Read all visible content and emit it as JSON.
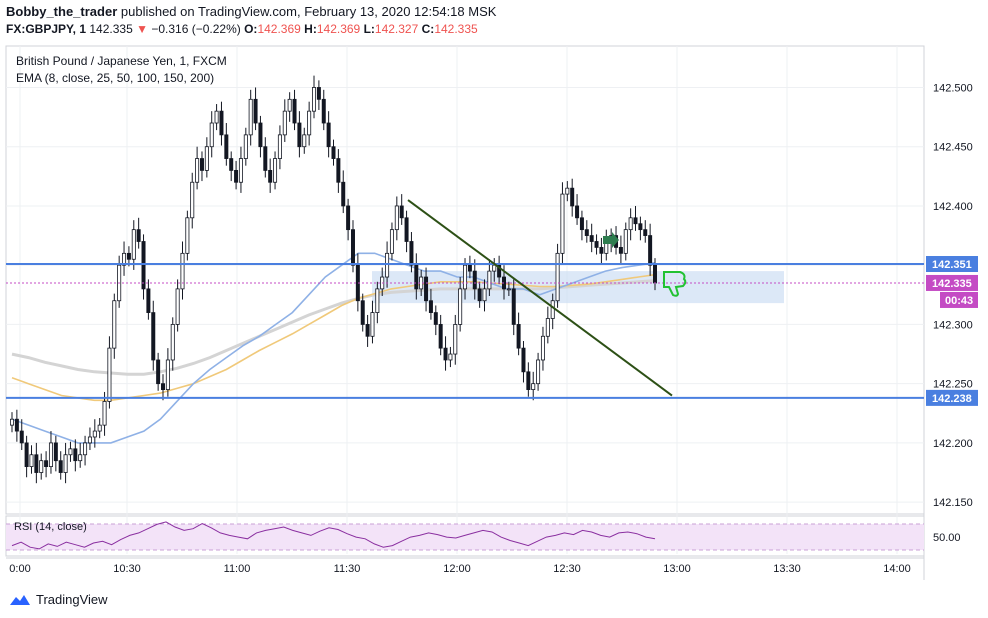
{
  "header": {
    "publisher": "Bobby_the_trader",
    "published_text": "published on TradingView.com, February 13, 2020 12:54:18 MSK",
    "symbol": "FX:GBPJPY, 1",
    "last": "142.335",
    "change": "−0.316 (−0.22%)",
    "o_label": "O:",
    "o": "142.369",
    "h_label": "H:",
    "h": "142.369",
    "l_label": "L:",
    "l": "142.327",
    "c_label": "C:",
    "c": "142.335"
  },
  "legend": {
    "title": "British Pound / Japanese Yen, 1, FXCM",
    "ema": "EMA (8, close, 25, 50, 100, 150, 200)",
    "rsi": "RSI (14, close)"
  },
  "footer": {
    "brand": "TradingView"
  },
  "colors": {
    "up": "#131722",
    "down": "#131722",
    "level": "#4a7fe0",
    "trend": "#2d5016",
    "ema_blue": "#8fb1e6",
    "ema_orange": "#f0c97a",
    "ema_gray": "#d4d4d4",
    "rsi": "#8a2fa0",
    "rsi_band": "#f3e3f8",
    "price_tag": "#c44bc4",
    "zone": "#c9dbf3"
  },
  "chart_data": {
    "type": "candlestick",
    "x_ticks": [
      "0:00",
      "10:30",
      "11:00",
      "11:30",
      "12:00",
      "12:30",
      "13:00",
      "13:30",
      "14:00"
    ],
    "y_ticks": [
      "142.150",
      "142.200",
      "142.250",
      "142.300",
      "142.350",
      "142.400",
      "142.450",
      "142.500"
    ],
    "ylim": [
      142.14,
      142.535
    ],
    "levels": [
      {
        "value": 142.351,
        "label": "142.351"
      },
      {
        "value": 142.238,
        "label": "142.238"
      }
    ],
    "current_price": {
      "value": 142.335,
      "label": "142.335",
      "countdown": "00:43"
    },
    "rsi_tick": "50.00",
    "close": [
      142.22,
      142.21,
      142.2,
      142.18,
      142.19,
      142.175,
      142.185,
      142.18,
      142.2,
      142.185,
      142.175,
      142.19,
      142.195,
      142.185,
      142.19,
      142.2,
      142.205,
      142.21,
      142.215,
      142.235,
      142.28,
      142.32,
      142.35,
      142.36,
      142.355,
      142.38,
      142.37,
      142.33,
      142.31,
      142.27,
      142.25,
      142.245,
      142.27,
      142.3,
      142.33,
      142.36,
      142.39,
      142.42,
      142.44,
      142.43,
      142.45,
      142.47,
      142.48,
      142.46,
      142.44,
      142.43,
      142.42,
      142.44,
      142.46,
      142.49,
      142.47,
      142.45,
      142.43,
      142.42,
      142.44,
      142.46,
      142.48,
      142.49,
      142.47,
      142.45,
      142.46,
      142.48,
      142.5,
      142.49,
      142.47,
      142.45,
      142.44,
      142.42,
      142.4,
      142.38,
      142.35,
      142.32,
      142.3,
      142.29,
      142.31,
      142.33,
      142.34,
      142.36,
      142.38,
      142.4,
      142.39,
      142.37,
      142.35,
      142.33,
      142.34,
      142.32,
      142.31,
      142.3,
      142.28,
      142.27,
      142.275,
      142.3,
      142.33,
      142.35,
      142.345,
      142.33,
      142.32,
      142.33,
      142.345,
      142.35,
      142.34,
      142.33,
      142.33,
      142.3,
      142.28,
      142.26,
      142.245,
      142.25,
      142.27,
      142.29,
      142.305,
      142.32,
      142.36,
      142.41,
      142.415,
      142.4,
      142.39,
      142.38,
      142.375,
      142.37,
      142.365,
      142.36,
      142.37,
      142.375,
      142.365,
      142.36,
      142.38,
      142.39,
      142.385,
      142.38,
      142.375,
      142.35,
      142.335
    ],
    "ema": {
      "blue": [
        142.22,
        142.215,
        142.21,
        142.205,
        142.2,
        142.2,
        142.2,
        142.205,
        142.21,
        142.22,
        142.235,
        142.25,
        142.262,
        142.272,
        142.282,
        142.29,
        142.3,
        142.31,
        142.325,
        142.34,
        142.35,
        142.36,
        142.36,
        142.355,
        142.35,
        142.345,
        142.345,
        142.34,
        142.34,
        142.335,
        142.33,
        142.33,
        142.325,
        142.33,
        142.335,
        142.34,
        142.345,
        142.348,
        142.35,
        142.352
      ],
      "orange": [
        142.255,
        142.25,
        142.245,
        142.24,
        142.238,
        142.236,
        142.236,
        142.238,
        142.24,
        142.242,
        142.246,
        142.25,
        142.256,
        142.262,
        142.27,
        142.278,
        142.285,
        142.292,
        142.3,
        142.308,
        142.316,
        142.322,
        142.326,
        142.33,
        142.332,
        142.334,
        142.336,
        142.336,
        142.336,
        142.335,
        142.334,
        142.333,
        142.332,
        142.332,
        142.333,
        142.334,
        142.336,
        142.338,
        142.34,
        142.342
      ],
      "gray": [
        142.275,
        142.272,
        142.268,
        142.265,
        142.262,
        142.26,
        142.259,
        142.258,
        142.258,
        142.26,
        142.263,
        142.267,
        142.272,
        142.278,
        142.284,
        142.29,
        142.296,
        142.302,
        142.308,
        142.313,
        142.318,
        142.322,
        142.325,
        142.327,
        142.328,
        142.329,
        142.33,
        142.33,
        142.33,
        142.33,
        142.33,
        142.33,
        142.33,
        142.331,
        142.332,
        142.333,
        142.334,
        142.335,
        142.336,
        142.337
      ]
    },
    "rsi": [
      40,
      44,
      38,
      36,
      42,
      39,
      44,
      41,
      38,
      43,
      45,
      41,
      47,
      52,
      55,
      60,
      65,
      68,
      62,
      58,
      60,
      66,
      61,
      55,
      52,
      50,
      48,
      55,
      58,
      60,
      62,
      58,
      55,
      52,
      57,
      61,
      59,
      54,
      50,
      48,
      42,
      38,
      40,
      45,
      50,
      52,
      55,
      53,
      50,
      49,
      52,
      55,
      58,
      56,
      50,
      46,
      43,
      40,
      45,
      50,
      52,
      55,
      53,
      58,
      56,
      52,
      50,
      55,
      56,
      54,
      50,
      48
    ]
  }
}
